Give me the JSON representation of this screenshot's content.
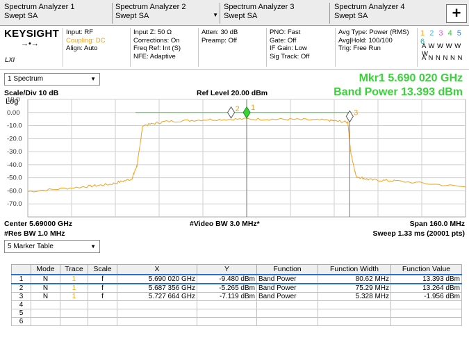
{
  "tabs": [
    {
      "title": "Spectrum Analyzer 1",
      "sub": "Swept SA"
    },
    {
      "title": "Spectrum Analyzer 2",
      "sub": "Swept SA"
    },
    {
      "title": "Spectrum Analyzer 3",
      "sub": "Swept SA"
    },
    {
      "title": "Spectrum Analyzer 4",
      "sub": "Swept SA"
    }
  ],
  "add_tab_label": "+",
  "brand": "KEYSIGHT",
  "lxi_label": "LXI",
  "info": {
    "col1": [
      "Input: RF",
      "Coupling: DC",
      "Align: Auto"
    ],
    "col2": [
      "Input Z: 50 Ω",
      "Corrections: On",
      "Freq Ref: Int (S)",
      "NFE: Adaptive"
    ],
    "col3": [
      "Atten: 30 dB",
      "Preamp: Off"
    ],
    "col4": [
      "PNO: Fast",
      "Gate: Off",
      "IF Gain: Low",
      "Sig Track: Off"
    ],
    "col5": [
      "Avg Type: Power (RMS)",
      "Avg|Hold: 100/100",
      "Trig: Free Run"
    ]
  },
  "trace_numbers": [
    "1",
    "2",
    "3",
    "4",
    "5",
    "6"
  ],
  "trace_colors": [
    "#f4a21c",
    "#4ab0e8",
    "#d35ad3",
    "#3ac23a",
    "#3a7ad8",
    "#2ab6a8"
  ],
  "trace_row2": "A W W W W W",
  "trace_row3": "A N N N N N",
  "window": {
    "selector": "1 Spectrum",
    "marker_line": "Mkr1  5.690 020 GHz",
    "band_power_line": "Band Power  13.393 dBm",
    "scale_div": "Scale/Div 10 dB",
    "ref_level": "Ref Level 20.00 dBm",
    "log_label": "Log",
    "center": "Center 5.69000 GHz",
    "res_bw": "#Res BW 1.0 MHz",
    "video_bw": "#Video BW 3.0 MHz*",
    "span": "Span 160.0 MHz",
    "sweep": "Sweep 1.33 ms (20001 pts)"
  },
  "chart_data": {
    "type": "line",
    "x_range": [
      5.61,
      5.77
    ],
    "ylim": [
      -80,
      10
    ],
    "yticks": [
      "10.0",
      "0.00",
      "-10.0",
      "-20.0",
      "-30.0",
      "-40.0",
      "-50.0",
      "-60.0",
      "-70.0"
    ],
    "ytick_values": [
      10,
      0,
      -10,
      -20,
      -30,
      -40,
      -50,
      -60,
      -70
    ],
    "grid": true,
    "series": [
      {
        "color": "#f4a21c",
        "x": [
          5.61,
          5.63,
          5.64,
          5.648,
          5.65,
          5.652,
          5.66,
          5.675,
          5.69,
          5.705,
          5.72,
          5.727,
          5.728,
          5.73,
          5.735,
          5.745,
          5.77
        ],
        "y": [
          -60.5,
          -57,
          -55,
          -51,
          -40,
          -10,
          -7,
          -5.5,
          -5.0,
          -5.2,
          -6.0,
          -7.5,
          -30,
          -49,
          -51.5,
          -52.5,
          -57.0
        ]
      }
    ],
    "band_power_region": {
      "x": [
        5.6524,
        5.7277
      ],
      "y": 0
    },
    "markers": [
      {
        "label": "1",
        "x": 5.69002,
        "y": -9.48,
        "color": "#39d339"
      },
      {
        "label": "2",
        "x": 5.687356,
        "y": -5.265,
        "color": "#f4a21c"
      },
      {
        "label": "3",
        "x": 5.727664,
        "y": -7.119,
        "color": "#f4a21c"
      }
    ]
  },
  "marker_table": {
    "selector": "5 Marker Table",
    "headers": [
      "",
      "Mode",
      "Trace",
      "Scale",
      "X",
      "Y",
      "Function",
      "Function Width",
      "Function Value"
    ],
    "rows": [
      [
        "1",
        "N",
        "1",
        "f",
        "5.690 020 GHz",
        "-9.480 dBm",
        "Band Power",
        "80.62 MHz",
        "13.393 dBm"
      ],
      [
        "2",
        "N",
        "1",
        "f",
        "5.687 356 GHz",
        "-5.265 dBm",
        "Band Power",
        "75.29 MHz",
        "13.264 dBm"
      ],
      [
        "3",
        "N",
        "1",
        "f",
        "5.727 664 GHz",
        "-7.119 dBm",
        "Band Power",
        "5.328 MHz",
        "-1.956 dBm"
      ],
      [
        "4",
        "",
        "",
        "",
        "",
        "",
        "",
        "",
        ""
      ],
      [
        "5",
        "",
        "",
        "",
        "",
        "",
        "",
        "",
        ""
      ],
      [
        "6",
        "",
        "",
        "",
        "",
        "",
        "",
        "",
        ""
      ]
    ]
  }
}
